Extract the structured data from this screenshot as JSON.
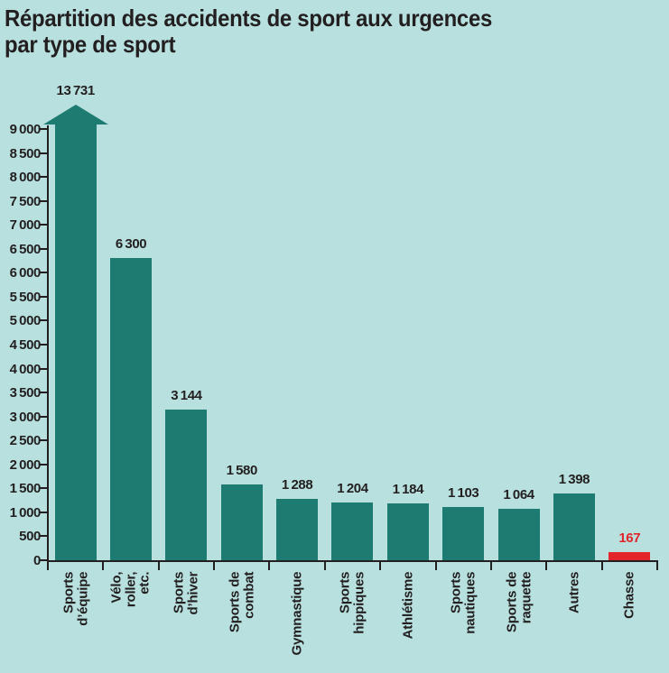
{
  "title_lines": [
    "Répartition des accidents de sport aux urgences",
    "par type de sport"
  ],
  "chart_data": {
    "type": "bar",
    "title": "Répartition des accidents de sport aux urgences par type de sport",
    "categories": [
      "Sports d’équipe",
      "Vélo, roller, etc.",
      "Sports d’hiver",
      "Sports de combat",
      "Gymnastique",
      "Sports hippiques",
      "Athlétisme",
      "Sports nautiques",
      "Sports de raquette",
      "Autres",
      "Chasse"
    ],
    "category_label_lines": [
      [
        "Sports",
        "d’équipe"
      ],
      [
        "Vélo,",
        "roller,",
        "etc."
      ],
      [
        "Sports",
        "d’hiver"
      ],
      [
        "Sports de",
        "combat"
      ],
      [
        "Gymnastique"
      ],
      [
        "Sports",
        "hippiques"
      ],
      [
        "Athlétisme"
      ],
      [
        "Sports",
        "nautiques"
      ],
      [
        "Sports de",
        "raquette"
      ],
      [
        "Autres"
      ],
      [
        "Chasse"
      ]
    ],
    "values": [
      13731,
      6300,
      3144,
      1580,
      1288,
      1204,
      1184,
      1103,
      1064,
      1398,
      167
    ],
    "value_labels": [
      "13 731",
      "6 300",
      "3 144",
      "1 580",
      "1 288",
      "1 204",
      "1 184",
      "1 103",
      "1 064",
      "1 398",
      "167"
    ],
    "xlabel": "",
    "ylabel": "",
    "ylim": [
      0,
      9000
    ],
    "ytick_step": 500,
    "ytick_labels": [
      "0",
      "500",
      "1 000",
      "1 500",
      "2 000",
      "2 500",
      "3 000",
      "3 500",
      "4 000",
      "4 500",
      "5 000",
      "5 500",
      "6 000",
      "6 500",
      "7 000",
      "7 500",
      "8 000",
      "8 500",
      "9 000"
    ],
    "grid": false,
    "legend": false,
    "overflow_arrow_index": 0,
    "highlight_index": 10,
    "colors": {
      "background": "#b7e0de",
      "bar": "#1e7b72",
      "highlight": "#e3242b",
      "axis": "#231f20",
      "text": "#231f20"
    }
  }
}
